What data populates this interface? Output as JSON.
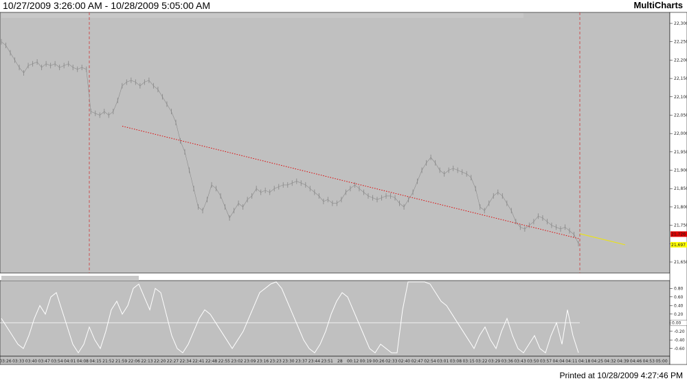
{
  "window": {
    "title": "10/27/2009 3:26:00 AM - 10/28/2009 5:05:00 AM",
    "brand": "MultiCharts",
    "printed": "Printed at 10/28/2009 4:27:46 PM"
  },
  "chart_data": [
    {
      "type": "line",
      "title": "",
      "yticks": [
        "22,300",
        "22,250",
        "22,200",
        "22,150",
        "22,100",
        "22,050",
        "22,000",
        "21,950",
        "21,900",
        "21,850",
        "21,800",
        "21,750",
        "21,700",
        "21,650"
      ],
      "ylim": [
        21620,
        22330
      ],
      "price_labels": [
        {
          "text": "21,726",
          "color": "#e00000"
        },
        {
          "text": "21,697",
          "color": "#ffff00"
        }
      ],
      "series": [
        {
          "values": [
            22250,
            22240,
            22220,
            22200,
            22180,
            22165,
            22185,
            22190,
            22195,
            22180,
            22190,
            22185,
            22190,
            22180,
            22185,
            22190,
            22180,
            22175,
            22180,
            22175,
            22060,
            22055,
            22050,
            22060,
            22050,
            22060,
            22090,
            22130,
            22140,
            22145,
            22140,
            22130,
            22140,
            22145,
            22130,
            22120,
            22100,
            22080,
            22060,
            22030,
            21980,
            21950,
            21900,
            21850,
            21800,
            21790,
            21820,
            21860,
            21850,
            21830,
            21800,
            21770,
            21790,
            21810,
            21800,
            21820,
            21830,
            21850,
            21840,
            21845,
            21840,
            21850,
            21855,
            21860,
            21860,
            21865,
            21870,
            21865,
            21860,
            21850,
            21840,
            21830,
            21815,
            21820,
            21810,
            21810,
            21820,
            21840,
            21850,
            21860,
            21850,
            21840,
            21830,
            21825,
            21820,
            21825,
            21830,
            21830,
            21825,
            21810,
            21800,
            21820,
            21840,
            21870,
            21900,
            21920,
            21935,
            21920,
            21900,
            21890,
            21900,
            21905,
            21900,
            21895,
            21890,
            21880,
            21850,
            21800,
            21790,
            21810,
            21830,
            21840,
            21830,
            21810,
            21790,
            21760,
            21745,
            21740,
            21750,
            21760,
            21775,
            21770,
            21760,
            21750,
            21745,
            21740,
            21745,
            21735,
            21725,
            21700
          ]
        },
        {
          "values": [
            22020,
            21713
          ]
        },
        {
          "values": [
            21727,
            21697
          ]
        }
      ]
    },
    {
      "type": "line",
      "title": "",
      "yticks": [
        "0.80",
        "0.60",
        "0.40",
        "0.20",
        "0.00",
        "-0.20",
        "-0.40",
        "-0.60"
      ],
      "ylim": [
        -0.78,
        0.98
      ],
      "value_labels": [
        "0.00"
      ],
      "series": [
        {
          "values": [
            0.1,
            -0.1,
            -0.3,
            -0.5,
            -0.6,
            -0.3,
            0.1,
            0.4,
            0.2,
            0.6,
            0.7,
            0.3,
            -0.1,
            -0.5,
            -0.7,
            -0.5,
            -0.1,
            -0.4,
            -0.6,
            -0.2,
            0.3,
            0.5,
            0.2,
            0.4,
            0.8,
            0.9,
            0.6,
            0.3,
            0.8,
            0.7,
            0.2,
            -0.3,
            -0.6,
            -0.7,
            -0.5,
            -0.2,
            0.1,
            0.3,
            0.2,
            0.0,
            -0.2,
            -0.4,
            -0.6,
            -0.4,
            -0.2,
            0.1,
            0.4,
            0.7,
            0.8,
            0.9,
            0.95,
            0.8,
            0.5,
            0.2,
            -0.1,
            -0.4,
            -0.6,
            -0.7,
            -0.5,
            -0.2,
            0.2,
            0.5,
            0.7,
            0.6,
            0.3,
            0.0,
            -0.3,
            -0.6,
            -0.7,
            -0.5,
            -0.6,
            -0.7,
            -0.7,
            0.3,
            0.95,
            0.95,
            0.95,
            0.95,
            0.9,
            0.7,
            0.5,
            0.4,
            0.2,
            0.0,
            -0.2,
            -0.4,
            -0.6,
            -0.3,
            -0.1,
            -0.4,
            -0.6,
            -0.2,
            0.1,
            -0.3,
            -0.6,
            -0.7,
            -0.5,
            -0.3,
            -0.6,
            -0.7,
            -0.3,
            0.0,
            -0.5,
            0.3,
            -0.3,
            -0.7
          ]
        }
      ]
    }
  ],
  "x_axis": {
    "ticks": [
      "03:26",
      "03:33",
      "03:40",
      "03:47",
      "03:54",
      "04:01",
      "04:08",
      "04:15",
      "21:52",
      "21:59",
      "22:06",
      "22:13",
      "22:20",
      "22:27",
      "22:34",
      "22:41",
      "22:48",
      "22:55",
      "23:02",
      "23:09",
      "23:16",
      "23:23",
      "23:30",
      "23:37",
      "23:44",
      "23:51",
      "28",
      "00:12",
      "00:19",
      "00:26",
      "02:33",
      "02:40",
      "02:47",
      "02:54",
      "03:01",
      "03:08",
      "03:15",
      "03:22",
      "03:29",
      "03:36",
      "03:43",
      "03:50",
      "03:57",
      "04:04",
      "04:11",
      "04:18",
      "04:25",
      "04:32",
      "04:39",
      "04:46",
      "04:53",
      "05:00"
    ]
  }
}
